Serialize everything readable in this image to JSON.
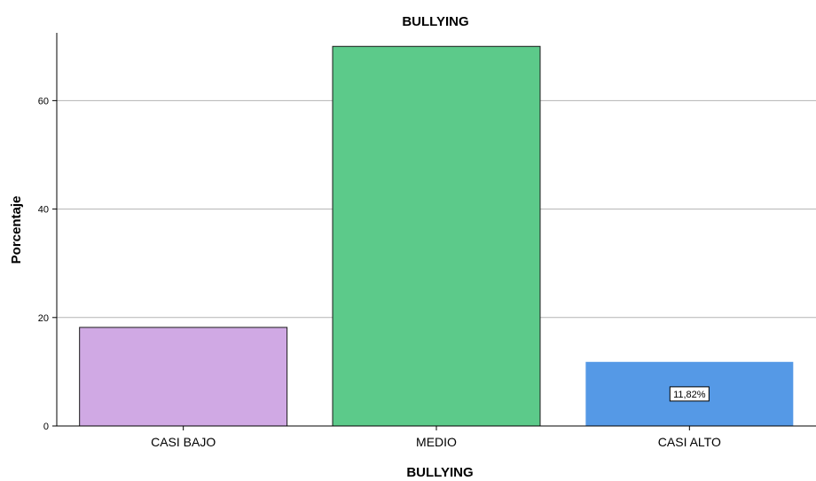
{
  "chart_data": {
    "type": "bar",
    "title": "BULLYING",
    "xlabel": "BULLYING",
    "ylabel": "Porcentaje",
    "categories": [
      "CASI BAJO",
      "MEDIO",
      "CASI ALTO"
    ],
    "values": [
      18.18,
      70.0,
      11.82
    ],
    "colors": [
      "#d0a9e4",
      "#5cca8a",
      "#5599e6"
    ],
    "yticks": [
      "0",
      "20",
      "40",
      "60"
    ],
    "ylim": [
      0,
      72.5
    ],
    "grid": true,
    "data_labels": [
      "",
      "",
      "11,82%"
    ]
  }
}
